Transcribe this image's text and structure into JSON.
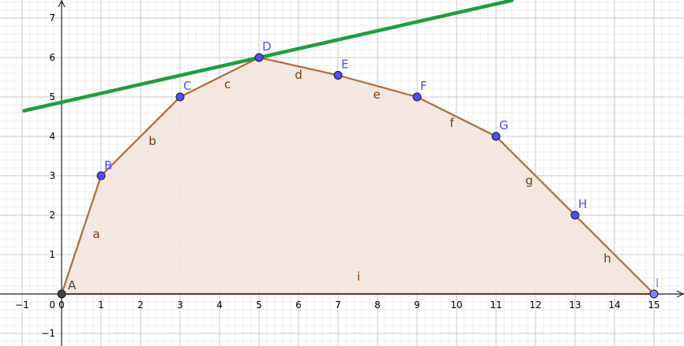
{
  "chart_data": {
    "type": "geometry",
    "xlim": [
      -1.5,
      15.8
    ],
    "ylim": [
      -1.3,
      7.45
    ],
    "grid": true,
    "x_ticks": [
      -1,
      0,
      1,
      2,
      3,
      4,
      5,
      6,
      7,
      8,
      9,
      10,
      11,
      12,
      13,
      14,
      15
    ],
    "y_ticks": [
      -1,
      1,
      2,
      3,
      4,
      5,
      6,
      7
    ],
    "origin_label": "0",
    "points": [
      {
        "name": "A",
        "x": 0,
        "y": 0,
        "color": "#444444"
      },
      {
        "name": "B",
        "x": 1,
        "y": 3,
        "color": "#4d4dff"
      },
      {
        "name": "C",
        "x": 3,
        "y": 5,
        "color": "#4d4dff"
      },
      {
        "name": "D",
        "x": 5,
        "y": 6,
        "color": "#4d4dff"
      },
      {
        "name": "E",
        "x": 7,
        "y": 5.55,
        "color": "#4d4dff"
      },
      {
        "name": "F",
        "x": 9,
        "y": 5,
        "color": "#4d4dff"
      },
      {
        "name": "G",
        "x": 11,
        "y": 4,
        "color": "#4d4dff"
      },
      {
        "name": "H",
        "x": 13,
        "y": 2,
        "color": "#4d4dff"
      },
      {
        "name": "I",
        "x": 15,
        "y": 0,
        "color": "#8080ff"
      }
    ],
    "point_labels": [
      "A",
      "B",
      "C",
      "D",
      "E",
      "F",
      "G",
      "H",
      "I"
    ],
    "segments": [
      {
        "name": "a",
        "from": "A",
        "to": "B"
      },
      {
        "name": "b",
        "from": "B",
        "to": "C"
      },
      {
        "name": "c",
        "from": "C",
        "to": "D"
      },
      {
        "name": "d",
        "from": "D",
        "to": "E"
      },
      {
        "name": "e",
        "from": "E",
        "to": "F"
      },
      {
        "name": "f",
        "from": "F",
        "to": "G"
      },
      {
        "name": "g",
        "from": "G",
        "to": "H"
      },
      {
        "name": "h",
        "from": "H",
        "to": "I"
      },
      {
        "name": "i",
        "from": "I",
        "to": "A"
      }
    ],
    "segment_labels": [
      "a",
      "b",
      "c",
      "d",
      "e",
      "f",
      "g",
      "h",
      "i"
    ],
    "tangent_line": {
      "x1": -0.95,
      "y1": 4.65,
      "x2": 11.4,
      "y2": 7.45,
      "color": "#1e9e3e"
    },
    "polygon_fill": "#f4e4df",
    "edge_color": "#b5673c",
    "label_color": "#4d4dff",
    "segment_label_color": "#7a3b0a"
  }
}
